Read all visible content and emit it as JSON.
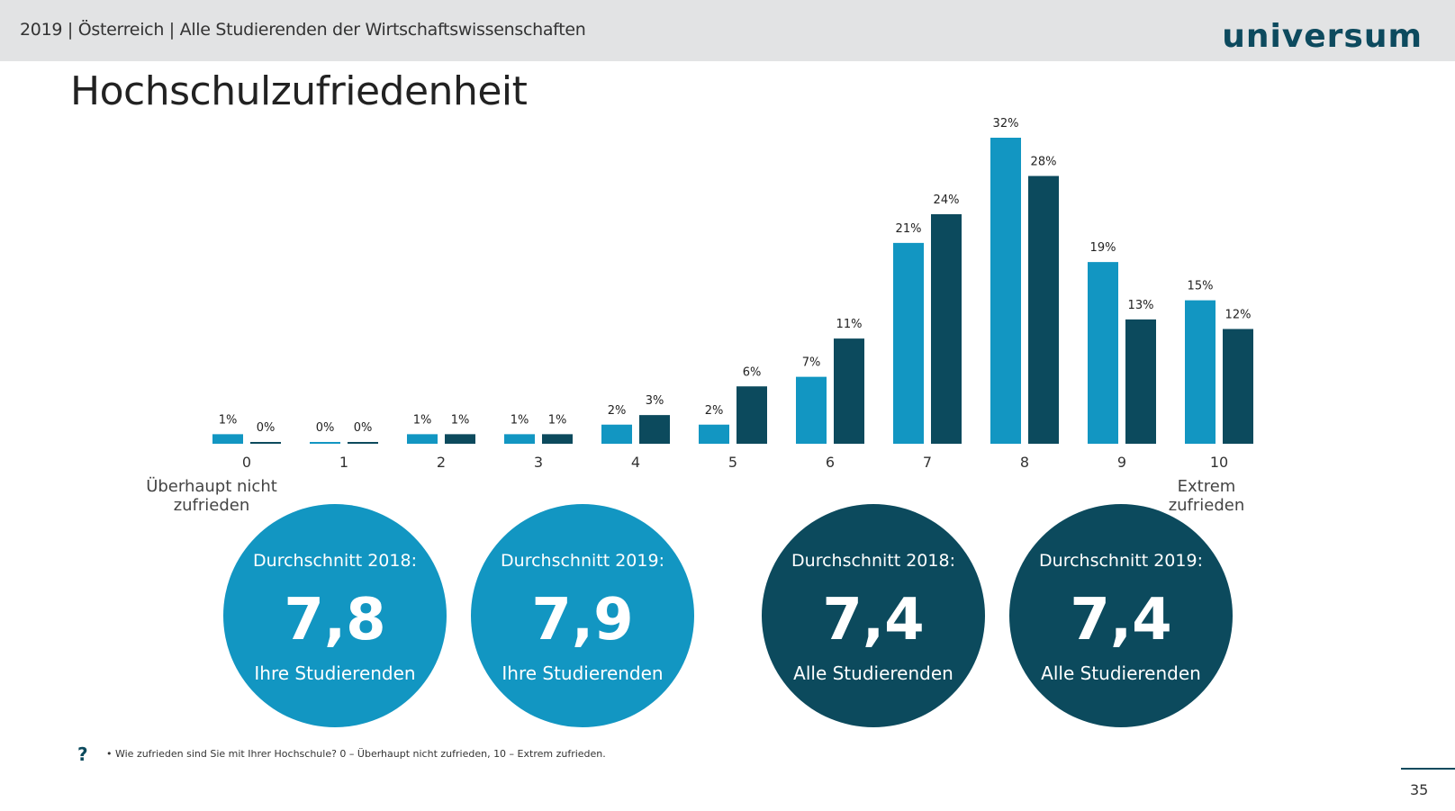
{
  "header": {
    "breadcrumb": "2019 | Österreich | Alle Studierenden der Wirtschaftswissenschaften",
    "logo": "universum"
  },
  "title": "Hochschulzufriedenheit",
  "chart_data": {
    "type": "bar",
    "categories": [
      "0",
      "1",
      "2",
      "3",
      "4",
      "5",
      "6",
      "7",
      "8",
      "9",
      "10"
    ],
    "series": [
      {
        "values": [
          1,
          0,
          1,
          1,
          2,
          2,
          7,
          21,
          32,
          19,
          15
        ],
        "labels": [
          "1%",
          "0%",
          "1%",
          "1%",
          "2%",
          "2%",
          "7%",
          "21%",
          "32%",
          "19%",
          "15%"
        ],
        "color": "#1296c2"
      },
      {
        "values": [
          0,
          0,
          1,
          1,
          3,
          6,
          11,
          24,
          28,
          13,
          12
        ],
        "labels": [
          "0%",
          "0%",
          "1%",
          "1%",
          "3%",
          "6%",
          "11%",
          "24%",
          "28%",
          "13%",
          "12%"
        ],
        "color": "#0c4a5d"
      }
    ],
    "ylim": [
      0,
      32
    ],
    "grid": false
  },
  "scale_labels": {
    "low": "Überhaupt nicht zufrieden",
    "high": "Extrem zufrieden"
  },
  "circles": [
    {
      "top": "Durchschnitt 2018:",
      "value": "7,8",
      "bottom": "Ihre Studierenden",
      "color": "#1296c2"
    },
    {
      "top": "Durchschnitt 2019:",
      "value": "7,9",
      "bottom": "Ihre Studierenden",
      "color": "#1296c2"
    },
    {
      "top": "Durchschnitt 2018:",
      "value": "7,4",
      "bottom": "Alle Studierenden",
      "color": "#0c4a5d"
    },
    {
      "top": "Durchschnitt 2019:",
      "value": "7,4",
      "bottom": "Alle Studierenden",
      "color": "#0c4a5d"
    }
  ],
  "footnote": {
    "icon": "?",
    "text": "•  Wie zufrieden sind Sie mit Ihrer Hochschule? 0 – Überhaupt nicht zufrieden, 10 – Extrem zufrieden."
  },
  "page_number": "35"
}
